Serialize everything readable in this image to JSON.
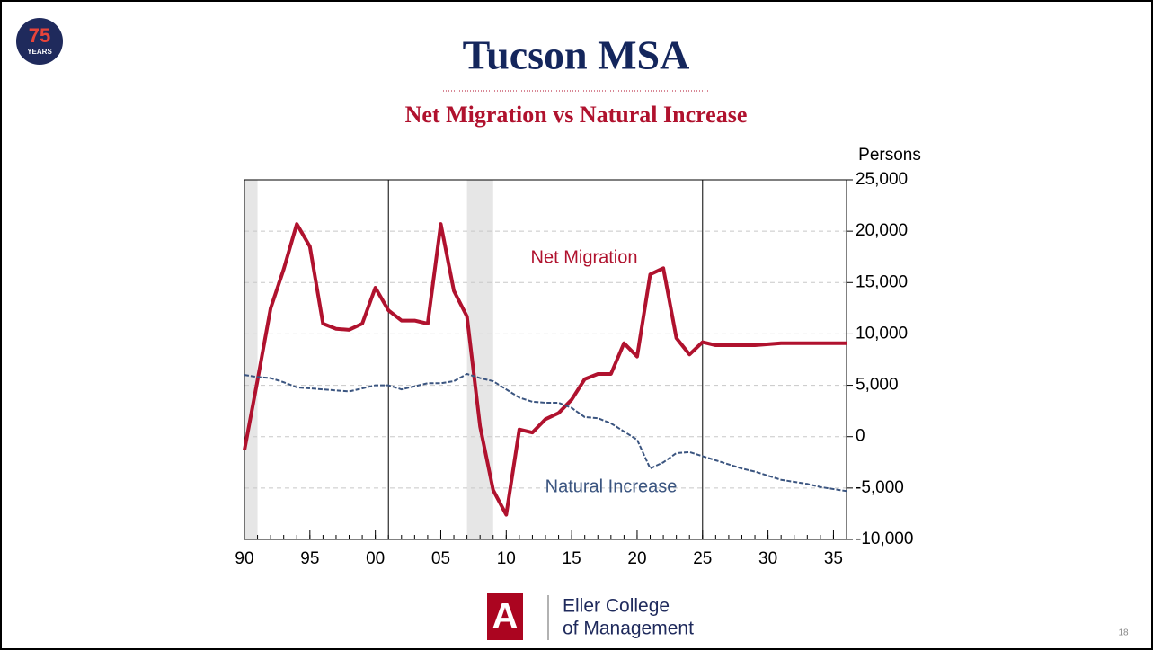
{
  "chart_data": {
    "type": "line",
    "title": "Tucson MSA",
    "subtitle": "Net Migration vs Natural Increase",
    "y_label": "Persons",
    "x": [
      1990,
      1991,
      1992,
      1993,
      1994,
      1995,
      1996,
      1997,
      1998,
      1999,
      2000,
      2001,
      2002,
      2003,
      2004,
      2005,
      2006,
      2007,
      2008,
      2009,
      2010,
      2011,
      2012,
      2013,
      2014,
      2015,
      2016,
      2017,
      2018,
      2019,
      2020,
      2021,
      2022,
      2023,
      2024,
      2025,
      2026,
      2027,
      2028,
      2029,
      2030,
      2031,
      2032,
      2033,
      2034,
      2035,
      2036
    ],
    "series": [
      {
        "name": "Net Migration",
        "color": "#b0122e",
        "dash": false,
        "values": [
          -1300,
          5500,
          12500,
          16300,
          20700,
          18500,
          11000,
          10500,
          10400,
          11000,
          14500,
          12300,
          11300,
          11300,
          11000,
          20700,
          14200,
          11700,
          1000,
          -5200,
          -7600,
          700,
          400,
          1700,
          2300,
          3600,
          5600,
          6100,
          6100,
          9100,
          7800,
          15800,
          16400,
          9600,
          8000,
          9200,
          8900,
          8900,
          8900,
          8900,
          9000,
          9100,
          9100,
          9100,
          9100,
          9100,
          9100
        ]
      },
      {
        "name": "Natural Increase",
        "color": "#3b5580",
        "dash": true,
        "values": [
          6000,
          5800,
          5700,
          5300,
          4800,
          4700,
          4600,
          4500,
          4400,
          4700,
          5000,
          5000,
          4600,
          4900,
          5200,
          5200,
          5400,
          6100,
          5700,
          5400,
          4600,
          3800,
          3400,
          3300,
          3300,
          2800,
          1900,
          1800,
          1300,
          500,
          -300,
          -3100,
          -2500,
          -1600,
          -1500,
          -1900,
          -2300,
          -2700,
          -3100,
          -3400,
          -3800,
          -4200,
          -4400,
          -4600,
          -4900,
          -5100,
          -5300
        ]
      }
    ],
    "xlim": [
      1990,
      2036
    ],
    "xticks": [
      {
        "value": 1990,
        "label": "90"
      },
      {
        "value": 1995,
        "label": "95"
      },
      {
        "value": 2000,
        "label": "00"
      },
      {
        "value": 2005,
        "label": "05"
      },
      {
        "value": 2010,
        "label": "10"
      },
      {
        "value": 2015,
        "label": "15"
      },
      {
        "value": 2020,
        "label": "20"
      },
      {
        "value": 2025,
        "label": "25"
      },
      {
        "value": 2030,
        "label": "30"
      },
      {
        "value": 2035,
        "label": "35"
      }
    ],
    "ylim": [
      -10000,
      25000
    ],
    "yticks": [
      {
        "value": -10000,
        "label": "-10,000"
      },
      {
        "value": -5000,
        "label": "-5,000"
      },
      0,
      {
        "value": 5000,
        "label": "5,000"
      },
      {
        "value": 10000,
        "label": "10,000"
      },
      {
        "value": 15000,
        "label": "15,000"
      },
      {
        "value": 20000,
        "label": "20,000"
      },
      {
        "value": 25000,
        "label": "25,000"
      }
    ],
    "grid": true,
    "recessions": [
      [
        1990,
        1991
      ],
      [
        2007,
        2009
      ]
    ],
    "vlines": [
      2001,
      2025
    ]
  },
  "slide": {
    "badge_number": "75",
    "badge_text": "YEARS",
    "footer": [
      "Eller College",
      "of Management"
    ],
    "page_number": "18"
  }
}
